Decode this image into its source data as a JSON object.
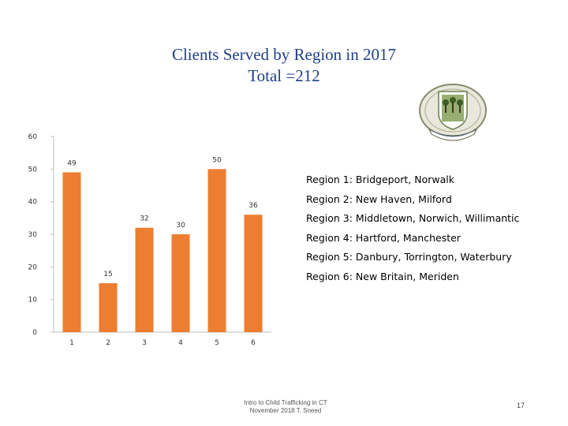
{
  "slide": {
    "title_line1": "Clients Served by Region in 2017",
    "title_line2": "Total =212",
    "footer_line1": "Intro to Child Trafficking in CT",
    "footer_line2": "November 2018 T. Sneed",
    "page_number": "17",
    "seal_icon": "connecticut-state-seal"
  },
  "legend": {
    "items": [
      "Region 1: Bridgeport, Norwalk",
      "Region 2: New Haven, Milford",
      "Region 3: Middletown, Norwich,  Willimantic",
      "Region 4: Hartford, Manchester",
      "Region 5: Danbury, Torrington, Waterbury",
      "Region 6: New Britain, Meriden"
    ]
  },
  "colors": {
    "bar": "#ed7d31",
    "title": "#1f3f88",
    "axis": "#bfbfbf"
  },
  "chart_data": {
    "type": "bar",
    "title": "Clients Served by Region in 2017",
    "subtitle": "Total =212",
    "categories": [
      "1",
      "2",
      "3",
      "4",
      "5",
      "6"
    ],
    "series": [
      {
        "values": [
          49,
          15,
          32,
          30,
          50,
          36
        ]
      }
    ],
    "data_labels": [
      "49",
      "15",
      "32",
      "30",
      "50",
      "36"
    ],
    "ylim": [
      0,
      60
    ],
    "yticks": [
      "0",
      "10",
      "20",
      "30",
      "40",
      "50",
      "60"
    ],
    "xlabel": "",
    "ylabel": "",
    "grid": false,
    "legend": "none"
  }
}
